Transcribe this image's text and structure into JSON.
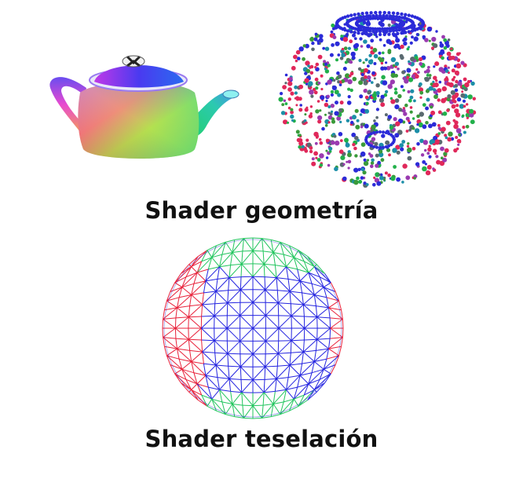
{
  "captions": {
    "geometry": "Shader geometría",
    "tessellation": "Shader teselación"
  },
  "colors": {
    "red": "#e8213a",
    "green": "#22c55e",
    "blue": "#2424e0",
    "point_palette": [
      "#2b2bd8",
      "#22b04a",
      "#e0285a",
      "#9a3ab0",
      "#1c8fa8",
      "#5a6a70",
      "#3a9a3a"
    ]
  }
}
